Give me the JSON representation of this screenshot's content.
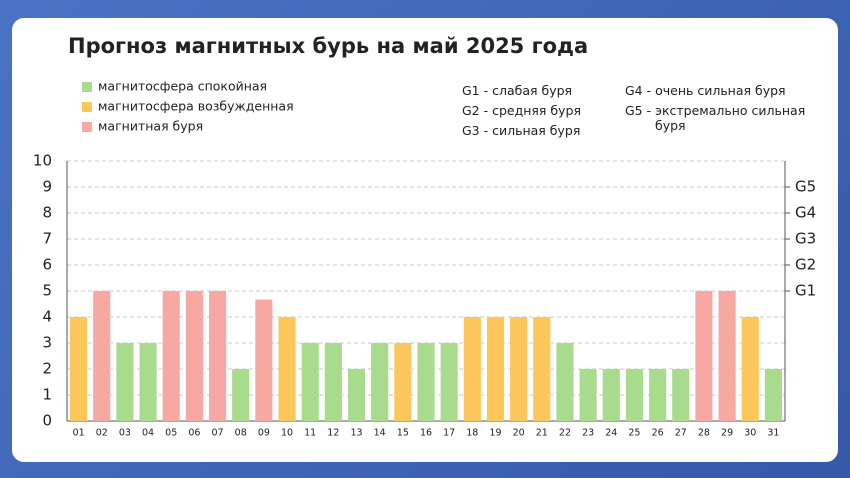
{
  "chart_data": {
    "type": "bar",
    "title": "Прогноз магнитных бурь на май 2025 года",
    "categories": [
      "01",
      "02",
      "03",
      "04",
      "05",
      "06",
      "07",
      "08",
      "09",
      "10",
      "11",
      "12",
      "13",
      "14",
      "15",
      "16",
      "17",
      "18",
      "19",
      "20",
      "21",
      "22",
      "23",
      "24",
      "25",
      "26",
      "27",
      "28",
      "29",
      "30",
      "31"
    ],
    "series": [
      {
        "name": "магнитосфера спокойная",
        "color": "#a8dc8c",
        "values": [
          null,
          null,
          3,
          3,
          null,
          null,
          null,
          2,
          null,
          null,
          3,
          3,
          2,
          3,
          null,
          3,
          3,
          null,
          null,
          null,
          null,
          3,
          2,
          2,
          2,
          2,
          2,
          null,
          null,
          null,
          2
        ]
      },
      {
        "name": "магнитосфера возбужденная",
        "color": "#fcc65c",
        "values": [
          4,
          null,
          null,
          null,
          null,
          null,
          null,
          null,
          null,
          4,
          null,
          null,
          null,
          null,
          3,
          null,
          null,
          4,
          4,
          4,
          4,
          null,
          null,
          null,
          null,
          null,
          null,
          null,
          null,
          4,
          null
        ]
      },
      {
        "name": "магнитная буря",
        "color": "#f7a8a3",
        "values": [
          null,
          5,
          null,
          null,
          5,
          5,
          5,
          null,
          4.67,
          null,
          null,
          null,
          null,
          null,
          null,
          null,
          null,
          null,
          null,
          null,
          null,
          null,
          null,
          null,
          null,
          null,
          null,
          5,
          5,
          null,
          null
        ]
      }
    ],
    "ylim": [
      0,
      10
    ],
    "yticks": [
      0,
      1,
      2,
      3,
      4,
      5,
      6,
      7,
      8,
      9,
      10
    ],
    "y2lim": [
      0,
      10
    ],
    "y2ticks": [
      {
        "value": 5,
        "label": "G1"
      },
      {
        "value": 6,
        "label": "G2"
      },
      {
        "value": 7,
        "label": "G3"
      },
      {
        "value": 8,
        "label": "G4"
      },
      {
        "value": 9,
        "label": "G5"
      }
    ],
    "grid": true,
    "annotations": [
      "G1 - слабая буря",
      "G2 - средняя буря",
      "G3 - сильная буря",
      "G4 - очень сильная буря",
      "G5 - экстремально сильная буря"
    ]
  }
}
